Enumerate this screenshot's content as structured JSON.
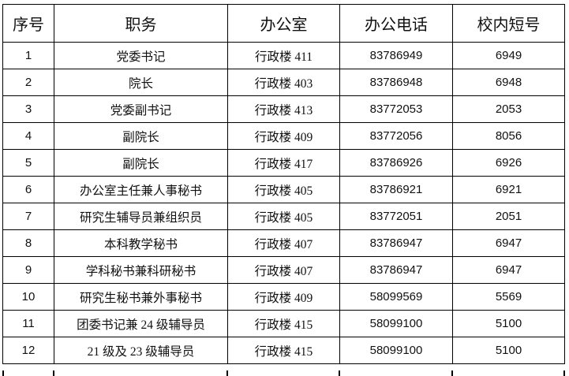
{
  "table": {
    "headers": [
      "序号",
      "职务",
      "办公室",
      "办公电话",
      "校内短号"
    ],
    "rows": [
      [
        "1",
        "党委书记",
        "行政楼 411",
        "83786949",
        "6949"
      ],
      [
        "2",
        "院长",
        "行政楼 403",
        "83786948",
        "6948"
      ],
      [
        "3",
        "党委副书记",
        "行政楼 413",
        "83772053",
        "2053"
      ],
      [
        "4",
        "副院长",
        "行政楼 409",
        "83772056",
        "8056"
      ],
      [
        "5",
        "副院长",
        "行政楼 417",
        "83786926",
        "6926"
      ],
      [
        "6",
        "办公室主任兼人事秘书",
        "行政楼 405",
        "83786921",
        "6921"
      ],
      [
        "7",
        "研究生辅导员兼组织员",
        "行政楼 405",
        "83772051",
        "2051"
      ],
      [
        "8",
        "本科教学秘书",
        "行政楼 407",
        "83786947",
        "6947"
      ],
      [
        "9",
        "学科秘书兼科研秘书",
        "行政楼 407",
        "83786947",
        "6947"
      ],
      [
        "10",
        "研究生秘书兼外事秘书",
        "行政楼 409",
        "58099569",
        "5569"
      ],
      [
        "11",
        "团委书记兼 24 级辅导员",
        "行政楼 415",
        "58099100",
        "5100"
      ],
      [
        "12",
        "21 级及 23 级辅导员",
        "行政楼 415",
        "58099100",
        "5100"
      ]
    ]
  }
}
